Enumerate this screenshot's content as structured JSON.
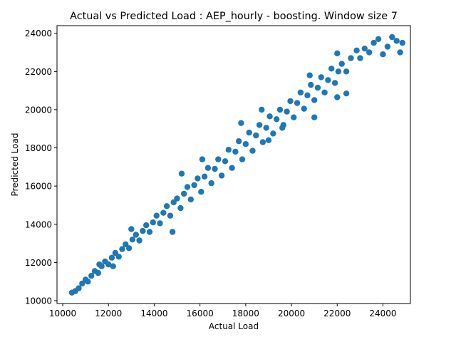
{
  "chart_data": {
    "type": "scatter",
    "title": "Actual vs Predicted Load : AEP_hourly - boosting. Window size 7",
    "xlabel": "Actual Load",
    "ylabel": "Predicted Load",
    "xlim": [
      9750,
      25200
    ],
    "ylim": [
      9850,
      24400
    ],
    "xticks": [
      10000,
      12000,
      14000,
      16000,
      18000,
      20000,
      22000,
      24000
    ],
    "yticks": [
      10000,
      12000,
      14000,
      16000,
      18000,
      20000,
      22000,
      24000
    ],
    "xtick_labels": [
      "10000",
      "12000",
      "14000",
      "16000",
      "18000",
      "20000",
      "22000",
      "24000"
    ],
    "ytick_labels": [
      "10000",
      "12000",
      "14000",
      "16000",
      "18000",
      "20000",
      "22000",
      "24000"
    ],
    "grid": false,
    "marker_color": "#1f77b4",
    "series": [
      {
        "points": [
          [
            10400,
            10420
          ],
          [
            10550,
            10500
          ],
          [
            10700,
            10650
          ],
          [
            10850,
            10900
          ],
          [
            11000,
            11100
          ],
          [
            11100,
            11000
          ],
          [
            11250,
            11300
          ],
          [
            11400,
            11550
          ],
          [
            11550,
            11450
          ],
          [
            11700,
            11800
          ],
          [
            11850,
            12050
          ],
          [
            12000,
            11900
          ],
          [
            12150,
            12250
          ],
          [
            12300,
            12500
          ],
          [
            12450,
            12300
          ],
          [
            12600,
            12700
          ],
          [
            12750,
            12950
          ],
          [
            12900,
            12750
          ],
          [
            13050,
            13200
          ],
          [
            13200,
            13450
          ],
          [
            13350,
            13150
          ],
          [
            13500,
            13650
          ],
          [
            13650,
            13950
          ],
          [
            13800,
            13600
          ],
          [
            13950,
            14100
          ],
          [
            14100,
            14450
          ],
          [
            14250,
            14050
          ],
          [
            14400,
            14600
          ],
          [
            14550,
            14950
          ],
          [
            14700,
            14450
          ],
          [
            14850,
            15150
          ],
          [
            15000,
            15350
          ],
          [
            15150,
            14850
          ],
          [
            15300,
            15600
          ],
          [
            15450,
            15950
          ],
          [
            15600,
            15300
          ],
          [
            15750,
            16050
          ],
          [
            15900,
            16400
          ],
          [
            16050,
            15700
          ],
          [
            16200,
            16500
          ],
          [
            16350,
            16950
          ],
          [
            16500,
            16150
          ],
          [
            16650,
            16900
          ],
          [
            16800,
            17400
          ],
          [
            16950,
            16550
          ],
          [
            17100,
            17300
          ],
          [
            17250,
            17900
          ],
          [
            17400,
            16950
          ],
          [
            17550,
            17800
          ],
          [
            17700,
            18350
          ],
          [
            17850,
            17400
          ],
          [
            18000,
            18200
          ],
          [
            18150,
            18800
          ],
          [
            18300,
            17850
          ],
          [
            18450,
            18650
          ],
          [
            18600,
            19200
          ],
          [
            18750,
            18300
          ],
          [
            18900,
            19050
          ],
          [
            19050,
            19650
          ],
          [
            19200,
            18750
          ],
          [
            19350,
            19500
          ],
          [
            19500,
            20000
          ],
          [
            19650,
            19200
          ],
          [
            19800,
            19900
          ],
          [
            19950,
            20450
          ],
          [
            20100,
            19600
          ],
          [
            20250,
            20350
          ],
          [
            20400,
            20900
          ],
          [
            20550,
            20050
          ],
          [
            20700,
            20750
          ],
          [
            20850,
            21300
          ],
          [
            21000,
            20500
          ],
          [
            21150,
            21150
          ],
          [
            21300,
            21700
          ],
          [
            21450,
            20900
          ],
          [
            21600,
            21550
          ],
          [
            21750,
            22150
          ],
          [
            21900,
            21400
          ],
          [
            22050,
            22000
          ],
          [
            22200,
            22400
          ],
          [
            22400,
            22000
          ],
          [
            22600,
            22700
          ],
          [
            22850,
            23100
          ],
          [
            23000,
            22700
          ],
          [
            23200,
            23200
          ],
          [
            23400,
            23000
          ],
          [
            23600,
            23500
          ],
          [
            23800,
            23700
          ],
          [
            24000,
            22900
          ],
          [
            24200,
            23300
          ],
          [
            24400,
            23800
          ],
          [
            24600,
            23600
          ],
          [
            24750,
            23000
          ],
          [
            24850,
            23500
          ],
          [
            12200,
            11800
          ],
          [
            14800,
            13600
          ],
          [
            15200,
            16650
          ],
          [
            16100,
            17400
          ],
          [
            18700,
            20000
          ],
          [
            20800,
            21800
          ],
          [
            22000,
            22950
          ],
          [
            22400,
            20850
          ],
          [
            22000,
            20650
          ],
          [
            21000,
            19600
          ],
          [
            19600,
            19050
          ],
          [
            13000,
            13750
          ],
          [
            11600,
            11900
          ],
          [
            19000,
            18400
          ],
          [
            17800,
            19300
          ]
        ]
      }
    ]
  }
}
